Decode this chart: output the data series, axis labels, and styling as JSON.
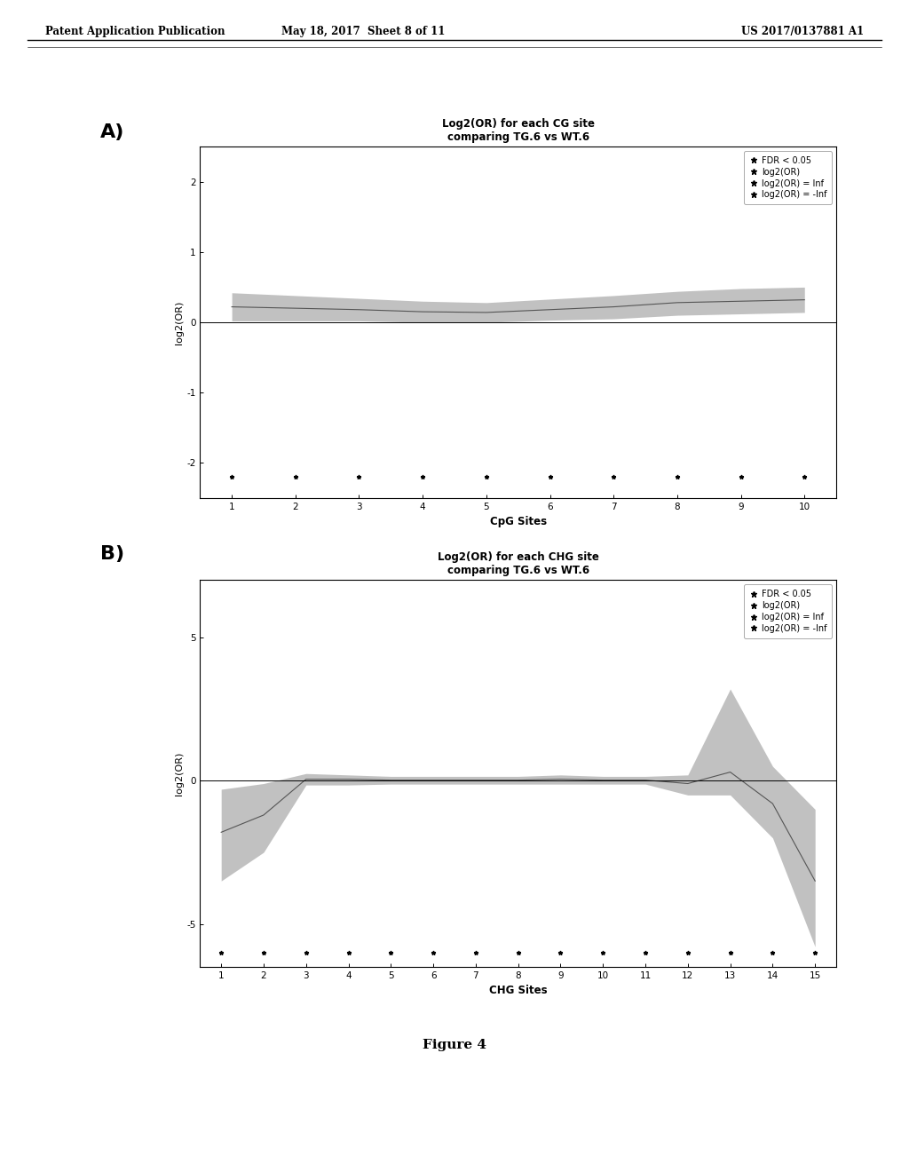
{
  "header_left": "Patent Application Publication",
  "header_mid": "May 18, 2017  Sheet 8 of 11",
  "header_right": "US 2017/0137881 A1",
  "panel_A": {
    "label": "A)",
    "title_line1": "Log2(OR) for each CG site",
    "title_line2": "comparing TG.6 vs WT.6",
    "xlabel": "CpG Sites",
    "ylabel": "log2(OR)",
    "xlim": [
      0.5,
      10.5
    ],
    "ylim": [
      -2.5,
      2.5
    ],
    "yticks": [
      -2,
      -1,
      0,
      1,
      2
    ],
    "xticks": [
      1,
      2,
      3,
      4,
      5,
      6,
      7,
      8,
      9,
      10
    ],
    "n_sites": 10,
    "band_center": [
      0.22,
      0.2,
      0.18,
      0.15,
      0.14,
      0.18,
      0.22,
      0.28,
      0.3,
      0.32
    ],
    "band_upper": [
      0.42,
      0.38,
      0.34,
      0.3,
      0.28,
      0.33,
      0.38,
      0.44,
      0.48,
      0.5
    ],
    "band_lower": [
      0.02,
      0.02,
      0.02,
      0.0,
      0.0,
      0.03,
      0.05,
      0.1,
      0.12,
      0.14
    ],
    "marker_y": -2.2,
    "legend_entries": [
      "FDR < 0.05",
      "log2(OR)",
      "log2(OR) = Inf",
      "log2(OR) = -Inf"
    ],
    "band_color": "#999999",
    "line_color": "#555555",
    "bg_color": "#ffffff"
  },
  "panel_B": {
    "label": "B)",
    "title_line1": "Log2(OR) for each CHG site",
    "title_line2": "comparing TG.6 vs WT.6",
    "xlabel": "CHG Sites",
    "ylabel": "log2(OR)",
    "xlim": [
      0.5,
      15.5
    ],
    "ylim": [
      -6.5,
      7.0
    ],
    "yticks": [
      -5,
      0,
      5
    ],
    "xticks": [
      1,
      2,
      3,
      4,
      5,
      6,
      7,
      8,
      9,
      10,
      11,
      12,
      13,
      14,
      15
    ],
    "n_sites": 15,
    "band_center": [
      -1.8,
      -1.2,
      0.05,
      0.05,
      0.02,
      0.02,
      0.02,
      0.02,
      0.05,
      0.02,
      0.02,
      -0.1,
      0.3,
      -0.8,
      -3.5
    ],
    "band_upper": [
      -0.3,
      -0.1,
      0.25,
      0.2,
      0.15,
      0.15,
      0.15,
      0.15,
      0.2,
      0.15,
      0.15,
      0.2,
      3.2,
      0.5,
      -1.0
    ],
    "band_lower": [
      -3.5,
      -2.5,
      -0.15,
      -0.15,
      -0.12,
      -0.12,
      -0.12,
      -0.12,
      -0.12,
      -0.12,
      -0.12,
      -0.5,
      -0.5,
      -2.0,
      -5.8
    ],
    "marker_y": -6.0,
    "marker_x_select": [
      1,
      2,
      3,
      4,
      5,
      6,
      7,
      8,
      9,
      10,
      15
    ],
    "legend_entries": [
      "FDR < 0.05",
      "log2(OR)",
      "log2(OR) = Inf",
      "log2(OR) = -Inf"
    ],
    "band_color": "#999999",
    "line_color": "#555555",
    "bg_color": "#ffffff"
  },
  "figure_label": "Figure 4",
  "bg_color": "#ffffff"
}
